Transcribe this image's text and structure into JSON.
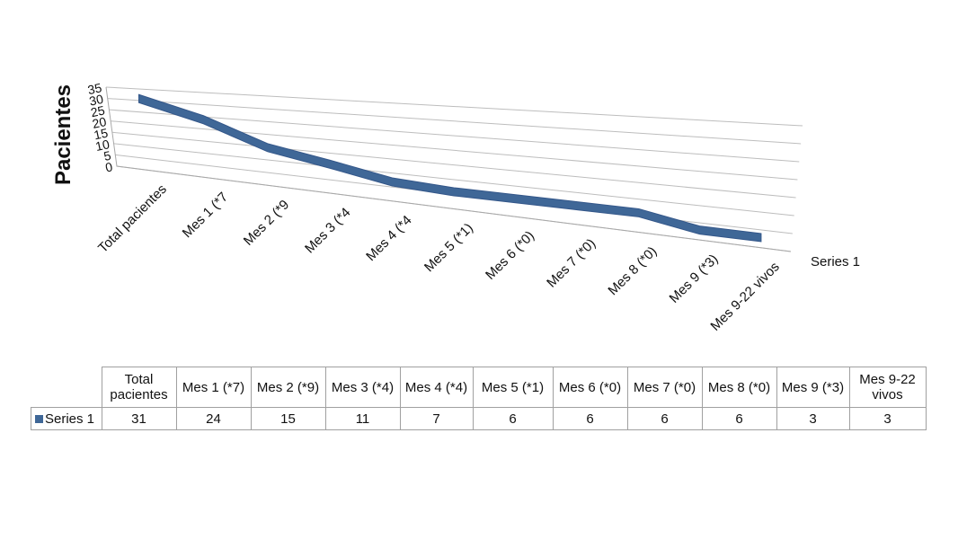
{
  "chart_data": {
    "type": "line",
    "ylabel": "Pacientes",
    "yticks": [
      "0",
      "5",
      "10",
      "15",
      "20",
      "25",
      "30",
      "35"
    ],
    "ylim": [
      0,
      35
    ],
    "categories": [
      "Total pacientes",
      "Mes 1 (*7)",
      "Mes 2 (*9)",
      "Mes 3 (*4)",
      "Mes 4 (*4)",
      "Mes 5 (*1)",
      "Mes 6 (*0)",
      "Mes 7 (*0)",
      "Mes 8 (*0)",
      "Mes 9 (*3)",
      "Mes 9-22 vivos"
    ],
    "axis_labels": [
      "Total pacientes",
      "Mes 1 (*7",
      "Mes 2 (*9",
      "Mes 3 (*4",
      "Mes 4 (*4",
      "Mes 5 (*1)",
      "Mes 6 (*0)",
      "Mes 7 (*0)",
      "Mes 8 (*0)",
      "Mes 9 (*3)",
      "Mes 9-22 vivos"
    ],
    "series": [
      {
        "name": "Series 1",
        "values": [
          31,
          24,
          15,
          11,
          7,
          6,
          6,
          6,
          6,
          3,
          3
        ]
      }
    ],
    "depth_label": "Series 1",
    "color": "#3f6797",
    "grid": true,
    "style": "3d-line",
    "table": {
      "headers": [
        [
          "Total",
          "pacientes"
        ],
        [
          "Mes 1 (*7)"
        ],
        [
          "Mes 2 (*9)"
        ],
        [
          "Mes 3 (*4)"
        ],
        [
          "Mes 4 (*4)"
        ],
        [
          "Mes 5 (*1)"
        ],
        [
          "Mes 6 (*0)"
        ],
        [
          "Mes 7 (*0)"
        ],
        [
          "Mes 8 (*0)"
        ],
        [
          "Mes 9 (*3)"
        ],
        [
          "Mes 9-22",
          "vivos"
        ]
      ],
      "row_label": "Series 1"
    }
  }
}
